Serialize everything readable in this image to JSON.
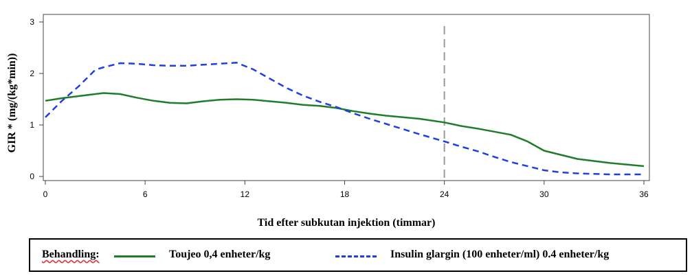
{
  "chart_data": {
    "type": "line",
    "title": "",
    "xlabel": "Tid efter subkutan injektion (timmar)",
    "ylabel": "GIR * (mg/(kg*min))",
    "xlim": [
      0,
      36
    ],
    "ylim": [
      0,
      3
    ],
    "xticks": [
      "0",
      "6",
      "12",
      "18",
      "24",
      "30",
      "36"
    ],
    "yticks": [
      "0",
      "1",
      "2",
      "3"
    ],
    "grid": false,
    "reference_line_x": 24,
    "legend_placement": "bottom",
    "legend_title": "Behandling:",
    "series": [
      {
        "name": "Toujeo 0,4 enheter/kg",
        "color": "#1e7d2a",
        "dash": "solid",
        "x": [
          0,
          1,
          2,
          3,
          3.5,
          4.5,
          5.5,
          6.5,
          7.5,
          8.5,
          9.5,
          10.5,
          11.5,
          12.5,
          13.5,
          14.5,
          15.5,
          16.5,
          17.5,
          18.5,
          19.5,
          20.5,
          21.5,
          22.5,
          24,
          25,
          26,
          27,
          28,
          29,
          30,
          31,
          32,
          33,
          34,
          35,
          36
        ],
        "values": [
          1.47,
          1.52,
          1.56,
          1.6,
          1.62,
          1.6,
          1.53,
          1.47,
          1.43,
          1.42,
          1.46,
          1.49,
          1.5,
          1.49,
          1.46,
          1.43,
          1.39,
          1.37,
          1.33,
          1.27,
          1.22,
          1.18,
          1.15,
          1.12,
          1.05,
          0.98,
          0.93,
          0.87,
          0.81,
          0.68,
          0.5,
          0.42,
          0.34,
          0.3,
          0.26,
          0.23,
          0.2
        ]
      },
      {
        "name": "Insulin glargin (100 enheter/ml) 0.4 enheter/kg",
        "color": "#1f3fe0",
        "dash": "dashed",
        "x": [
          0,
          1,
          2,
          3,
          3.5,
          4.5,
          5.5,
          6.5,
          7.5,
          8.5,
          9.5,
          10.5,
          11.5,
          12.5,
          13.5,
          14.5,
          15.5,
          16.5,
          17.5,
          18.5,
          19.5,
          20.5,
          21.5,
          22.5,
          24,
          25,
          26,
          27,
          28,
          29,
          30,
          31,
          32,
          33,
          34,
          35,
          36
        ],
        "values": [
          1.15,
          1.47,
          1.75,
          2.07,
          2.12,
          2.2,
          2.19,
          2.16,
          2.15,
          2.15,
          2.17,
          2.19,
          2.21,
          2.08,
          1.9,
          1.72,
          1.57,
          1.45,
          1.35,
          1.23,
          1.12,
          1.02,
          0.92,
          0.82,
          0.68,
          0.58,
          0.49,
          0.38,
          0.28,
          0.2,
          0.12,
          0.08,
          0.06,
          0.05,
          0.04,
          0.04,
          0.04
        ]
      }
    ]
  }
}
